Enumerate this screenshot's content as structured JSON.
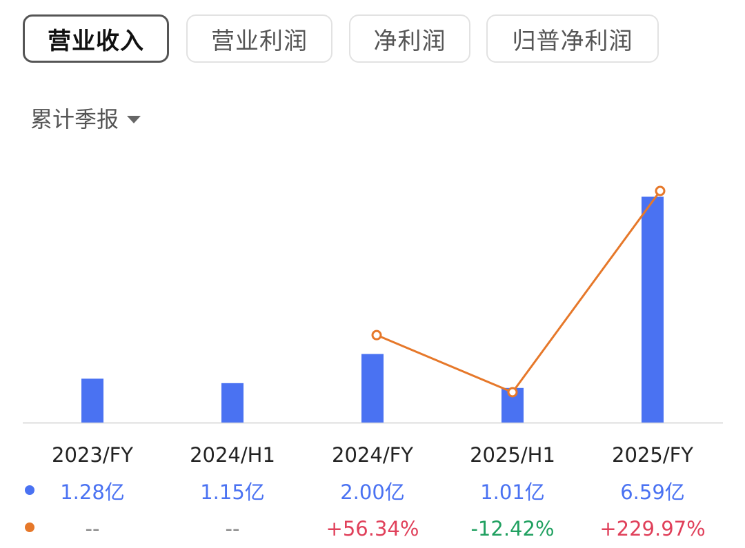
{
  "tabs": [
    {
      "label": "营业收入",
      "active": true
    },
    {
      "label": "营业利润",
      "active": false
    },
    {
      "label": "净利润",
      "active": false
    },
    {
      "label": "归普净利润",
      "active": false
    }
  ],
  "period_selector": {
    "label": "累计季报",
    "icon": "caret-down-icon"
  },
  "colors": {
    "bar": "#4a72f2",
    "line": "#e6782a",
    "positive": "#e0405a",
    "negative": "#20a060",
    "neutral": "#888888",
    "axis": "#dddddd"
  },
  "chart_data": {
    "type": "bar",
    "categories": [
      "2023/FY",
      "2024/H1",
      "2024/FY",
      "2025/H1",
      "2025/FY"
    ],
    "series": [
      {
        "kind": "bar",
        "values": [
          1.28,
          1.15,
          2.0,
          1.01,
          6.59
        ],
        "labels": [
          "1.28亿",
          "1.15亿",
          "2.00亿",
          "1.01亿",
          "6.59亿"
        ]
      },
      {
        "kind": "line",
        "values": [
          null,
          null,
          56.34,
          -12.42,
          229.97
        ],
        "labels": [
          "--",
          "--",
          "+56.34%",
          "-12.42%",
          "+229.97%"
        ]
      }
    ],
    "ylim": [
      0,
      7
    ]
  }
}
